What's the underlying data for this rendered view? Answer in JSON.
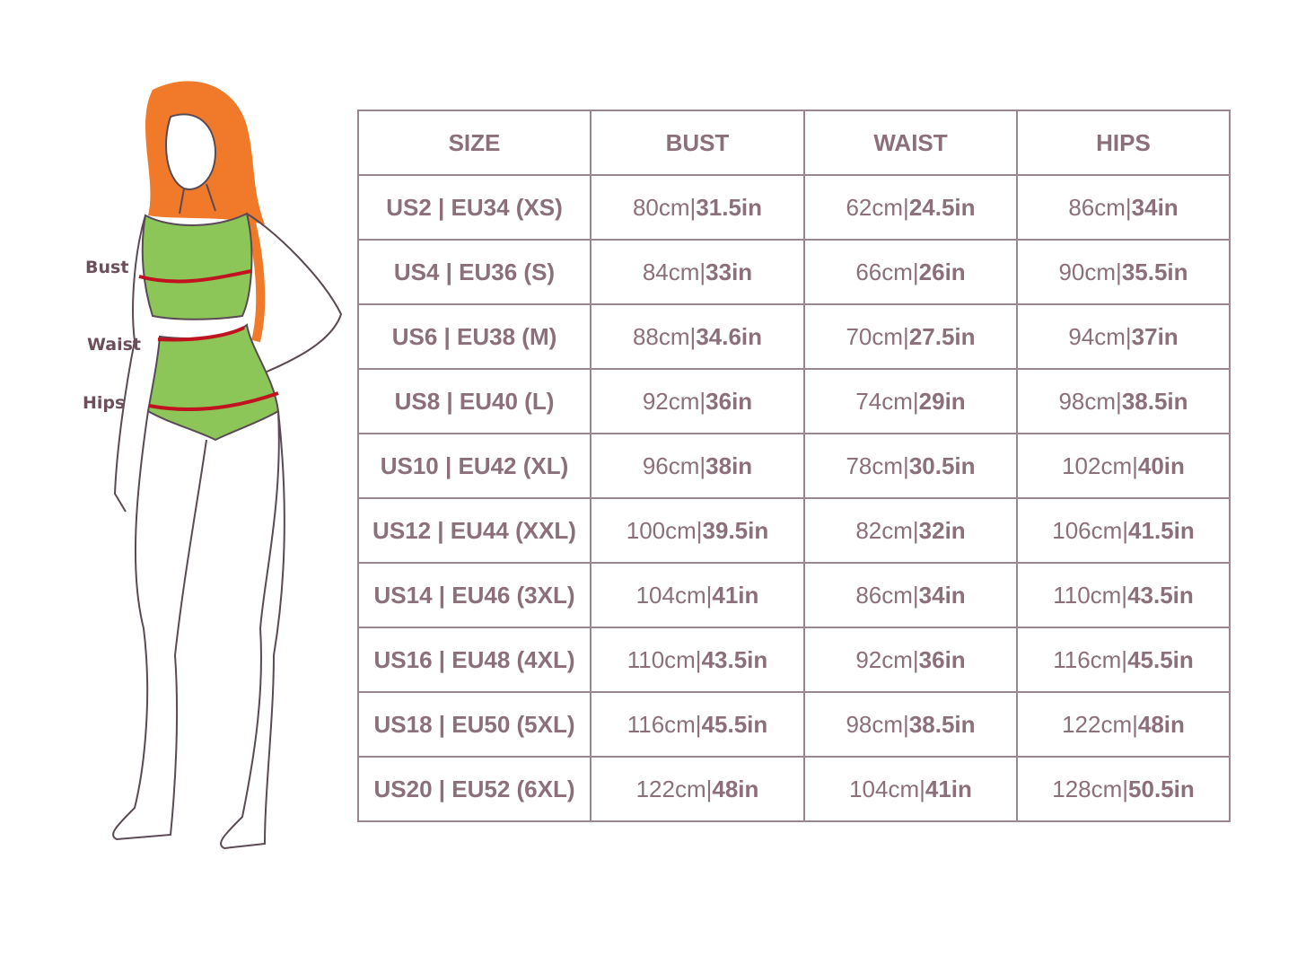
{
  "figure_labels": {
    "bust": "Bust",
    "waist": "Waist",
    "hips": "Hips"
  },
  "colors": {
    "text": "#8b6f7b",
    "border": "#9a8690",
    "garment": "#8cc558",
    "hair": "#f07a2a",
    "measure_line": "#c0121f"
  },
  "table": {
    "headers": [
      "SIZE",
      "BUST",
      "WAIST",
      "HIPS"
    ],
    "rows": [
      {
        "size": "US2 | EU34 (XS)",
        "bust": {
          "cm": "80cm|",
          "in": "31.5in"
        },
        "waist": {
          "cm": "62cm|",
          "in": "24.5in"
        },
        "hips": {
          "cm": "86cm|",
          "in": "34in"
        }
      },
      {
        "size": "US4 | EU36 (S)",
        "bust": {
          "cm": "84cm|",
          "in": "33in"
        },
        "waist": {
          "cm": "66cm|",
          "in": "26in"
        },
        "hips": {
          "cm": "90cm|",
          "in": "35.5in"
        }
      },
      {
        "size": "US6 | EU38 (M)",
        "bust": {
          "cm": "88cm|",
          "in": "34.6in"
        },
        "waist": {
          "cm": "70cm|",
          "in": "27.5in"
        },
        "hips": {
          "cm": "94cm|",
          "in": "37in"
        }
      },
      {
        "size": "US8 | EU40 (L)",
        "bust": {
          "cm": "92cm|",
          "in": "36in"
        },
        "waist": {
          "cm": "74cm|",
          "in": "29in"
        },
        "hips": {
          "cm": "98cm|",
          "in": "38.5in"
        }
      },
      {
        "size": "US10 | EU42  (XL)",
        "bust": {
          "cm": "96cm|",
          "in": "38in"
        },
        "waist": {
          "cm": "78cm|",
          "in": "30.5in"
        },
        "hips": {
          "cm": "102cm|",
          "in": "40in"
        }
      },
      {
        "size": "US12 | EU44 (XXL)",
        "bust": {
          "cm": "100cm|",
          "in": "39.5in"
        },
        "waist": {
          "cm": "82cm|",
          "in": "32in"
        },
        "hips": {
          "cm": "106cm|",
          "in": "41.5in"
        }
      },
      {
        "size": "US14 | EU46 (3XL)",
        "bust": {
          "cm": "104cm|",
          "in": "41in"
        },
        "waist": {
          "cm": "86cm|",
          "in": "34in"
        },
        "hips": {
          "cm": "110cm|",
          "in": "43.5in"
        }
      },
      {
        "size": "US16 | EU48 (4XL)",
        "bust": {
          "cm": "110cm|",
          "in": "43.5in"
        },
        "waist": {
          "cm": "92cm|",
          "in": "36in"
        },
        "hips": {
          "cm": "116cm|",
          "in": "45.5in"
        }
      },
      {
        "size": "US18 | EU50 (5XL)",
        "bust": {
          "cm": "116cm|",
          "in": "45.5in"
        },
        "waist": {
          "cm": "98cm|",
          "in": "38.5in"
        },
        "hips": {
          "cm": "122cm|",
          "in": "48in"
        }
      },
      {
        "size": "US20 | EU52 (6XL)",
        "bust": {
          "cm": "122cm|",
          "in": "48in"
        },
        "waist": {
          "cm": "104cm|",
          "in": "41in"
        },
        "hips": {
          "cm": "128cm|",
          "in": "50.5in"
        }
      }
    ]
  }
}
